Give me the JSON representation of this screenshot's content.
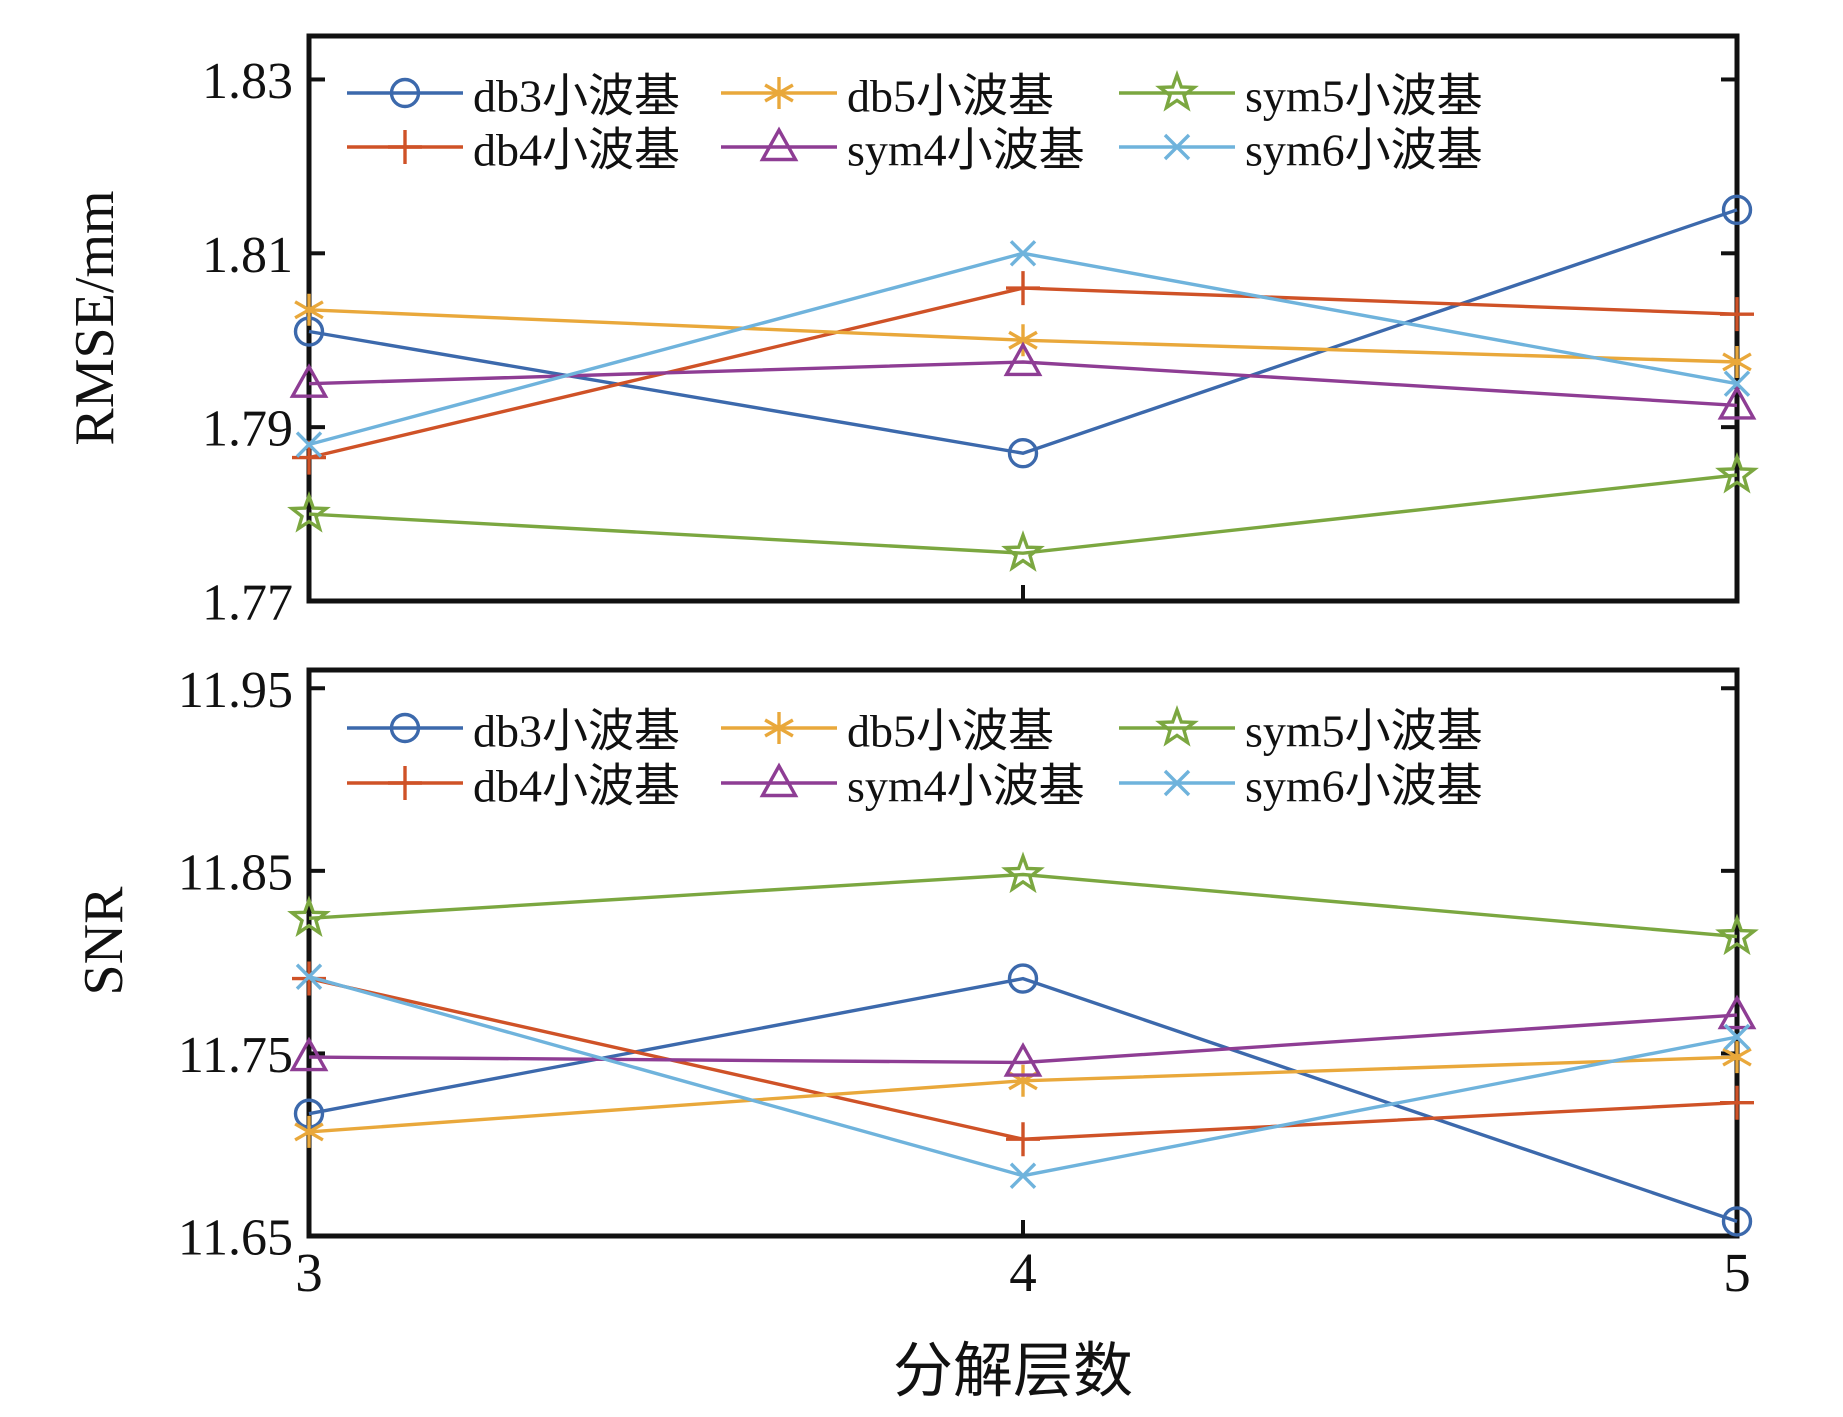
{
  "xlabel": "分解层数",
  "x_tick_labels": [
    "3",
    "4",
    "5"
  ],
  "legend_labels": [
    "db3小波基",
    "db4小波基",
    "db5小波基",
    "sym4小波基",
    "sym5小波基",
    "sym6小波基"
  ],
  "palette": {
    "db3": "#3C69AC",
    "db4": "#CF5227",
    "db5": "#E9A83B",
    "sym4": "#8E3D94",
    "sym5": "#7BA740",
    "sym6": "#6FB3DC",
    "axis": "#111111"
  },
  "chart_data": [
    {
      "type": "line",
      "panel": "top",
      "title": "",
      "ylabel": "RMSE/mm",
      "xlabel": "",
      "x": [
        3,
        4,
        5
      ],
      "xlim": [
        3,
        5
      ],
      "ylim": [
        1.77,
        1.835
      ],
      "yticks": [
        "1.77",
        "1.79",
        "1.81",
        "1.83"
      ],
      "grid": false,
      "legend_position": "inside-top-left, 2 rows x 3 columns, column-major",
      "series": [
        {
          "name": "db3小波基",
          "key": "db3",
          "marker": "circle",
          "color": "#3C69AC",
          "values": [
            1.801,
            1.787,
            1.815
          ]
        },
        {
          "name": "db4小波基",
          "key": "db4",
          "marker": "plus",
          "color": "#CF5227",
          "values": [
            1.7865,
            1.806,
            1.803
          ]
        },
        {
          "name": "db5小波基",
          "key": "db5",
          "marker": "asterisk",
          "color": "#E9A83B",
          "values": [
            1.8035,
            1.8,
            1.7975
          ]
        },
        {
          "name": "sym4小波基",
          "key": "sym4",
          "marker": "triangle",
          "color": "#8E3D94",
          "values": [
            1.795,
            1.7975,
            1.7925
          ]
        },
        {
          "name": "sym5小波基",
          "key": "sym5",
          "marker": "star",
          "color": "#7BA740",
          "values": [
            1.78,
            1.7755,
            1.7845
          ]
        },
        {
          "name": "sym6小波基",
          "key": "sym6",
          "marker": "x",
          "color": "#6FB3DC",
          "values": [
            1.788,
            1.81,
            1.795
          ]
        }
      ]
    },
    {
      "type": "line",
      "panel": "bottom",
      "title": "",
      "ylabel": "SNR",
      "xlabel": "分解层数",
      "x": [
        3,
        4,
        5
      ],
      "xlim": [
        3,
        5
      ],
      "ylim": [
        11.65,
        11.96
      ],
      "yticks": [
        "11.65",
        "11.75",
        "11.85",
        "11.95"
      ],
      "grid": false,
      "legend_position": "inside-top-left, 2 rows x 3 columns, column-major",
      "series": [
        {
          "name": "db3小波基",
          "key": "db3",
          "marker": "circle",
          "color": "#3C69AC",
          "values": [
            11.717,
            11.791,
            11.658
          ]
        },
        {
          "name": "db4小波基",
          "key": "db4",
          "marker": "plus",
          "color": "#CF5227",
          "values": [
            11.791,
            11.703,
            11.723
          ]
        },
        {
          "name": "db5小波基",
          "key": "db5",
          "marker": "asterisk",
          "color": "#E9A83B",
          "values": [
            11.707,
            11.735,
            11.748
          ]
        },
        {
          "name": "sym4小波基",
          "key": "sym4",
          "marker": "triangle",
          "color": "#8E3D94",
          "values": [
            11.748,
            11.745,
            11.771
          ]
        },
        {
          "name": "sym5小波基",
          "key": "sym5",
          "marker": "star",
          "color": "#7BA740",
          "values": [
            11.824,
            11.848,
            11.814
          ]
        },
        {
          "name": "sym6小波基",
          "key": "sym6",
          "marker": "x",
          "color": "#6FB3DC",
          "values": [
            11.792,
            11.683,
            11.759
          ]
        }
      ]
    }
  ]
}
